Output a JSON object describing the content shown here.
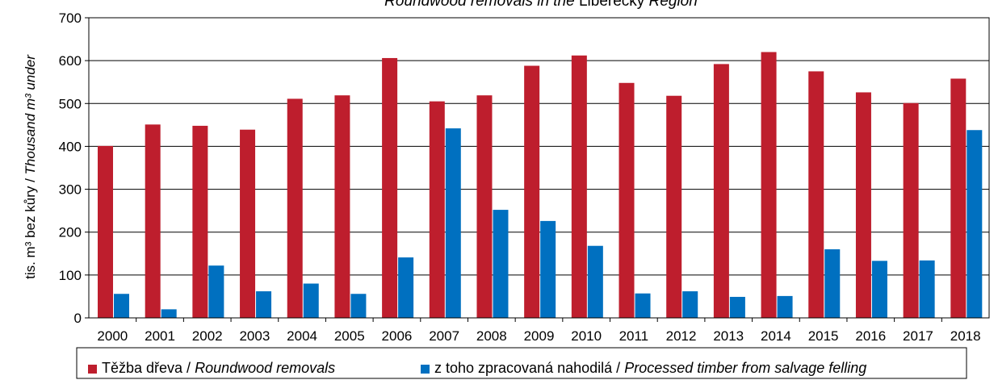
{
  "chart_data": {
    "type": "bar",
    "title": {
      "italic_part_1": "Roundwood removals in the",
      "regular_part": "Liberecký",
      "italic_part_2": "Region"
    },
    "ylabel": {
      "cz_part": "tis. m³ bez  kůry /",
      "en_part": "Thousand m³ under"
    },
    "xlabel": "",
    "ylim": [
      0,
      700
    ],
    "yticks": [
      0,
      100,
      200,
      300,
      400,
      500,
      600,
      700
    ],
    "grid": true,
    "legend_position": "bottom",
    "categories": [
      "2000",
      "2001",
      "2002",
      "2003",
      "2004",
      "2005",
      "2006",
      "2007",
      "2008",
      "2009",
      "2010",
      "2011",
      "2012",
      "2013",
      "2014",
      "2015",
      "2016",
      "2017",
      "2018"
    ],
    "series": [
      {
        "name_cz": "Těžba dřeva /",
        "name_en": "Roundwood removals",
        "color": "#be1e2d",
        "values": [
          401,
          451,
          448,
          439,
          511,
          519,
          606,
          505,
          519,
          588,
          612,
          548,
          518,
          592,
          620,
          575,
          526,
          501,
          558
        ]
      },
      {
        "name_cz": "z toho zpracovaná nahodilá /",
        "name_en": "Processed timber from salvage felling",
        "color": "#0070c0",
        "values": [
          56,
          20,
          122,
          62,
          80,
          56,
          141,
          442,
          252,
          226,
          168,
          57,
          62,
          49,
          51,
          160,
          133,
          134,
          438
        ]
      }
    ]
  }
}
